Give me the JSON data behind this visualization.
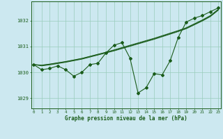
{
  "title": "Graphe pression niveau de la mer (hPa)",
  "background_color": "#cce8f0",
  "grid_color": "#99ccbb",
  "line_color": "#1a5c1a",
  "x_ticks": [
    0,
    1,
    2,
    3,
    4,
    5,
    6,
    7,
    8,
    9,
    10,
    11,
    12,
    13,
    14,
    15,
    16,
    17,
    18,
    19,
    20,
    21,
    22,
    23
  ],
  "y_ticks": [
    1029,
    1030,
    1031,
    1032
  ],
  "ylim": [
    1028.6,
    1032.75
  ],
  "xlim": [
    -0.3,
    23.3
  ],
  "series": {
    "main": [
      1030.3,
      1030.1,
      1030.15,
      1030.25,
      1030.1,
      1029.85,
      1030.0,
      1030.3,
      1030.35,
      1030.75,
      1031.05,
      1031.15,
      1030.55,
      1029.2,
      1029.4,
      1029.95,
      1029.9,
      1030.45,
      1031.35,
      1031.95,
      1032.1,
      1032.2,
      1032.35,
      1032.5
    ],
    "smooth1": [
      1030.3,
      1030.28,
      1030.32,
      1030.37,
      1030.42,
      1030.48,
      1030.54,
      1030.62,
      1030.7,
      1030.78,
      1030.87,
      1030.96,
      1031.05,
      1031.14,
      1031.23,
      1031.32,
      1031.42,
      1031.52,
      1031.62,
      1031.73,
      1031.88,
      1032.03,
      1032.2,
      1032.45
    ],
    "smooth2": [
      1030.3,
      1030.27,
      1030.31,
      1030.36,
      1030.41,
      1030.47,
      1030.53,
      1030.61,
      1030.69,
      1030.77,
      1030.85,
      1030.94,
      1031.03,
      1031.12,
      1031.21,
      1031.3,
      1031.4,
      1031.5,
      1031.6,
      1031.71,
      1031.86,
      1032.01,
      1032.18,
      1032.43
    ],
    "smooth3": [
      1030.3,
      1030.25,
      1030.29,
      1030.34,
      1030.39,
      1030.45,
      1030.51,
      1030.59,
      1030.67,
      1030.75,
      1030.83,
      1030.92,
      1031.01,
      1031.1,
      1031.19,
      1031.28,
      1031.38,
      1031.48,
      1031.58,
      1031.69,
      1031.84,
      1031.99,
      1032.16,
      1032.41
    ]
  }
}
